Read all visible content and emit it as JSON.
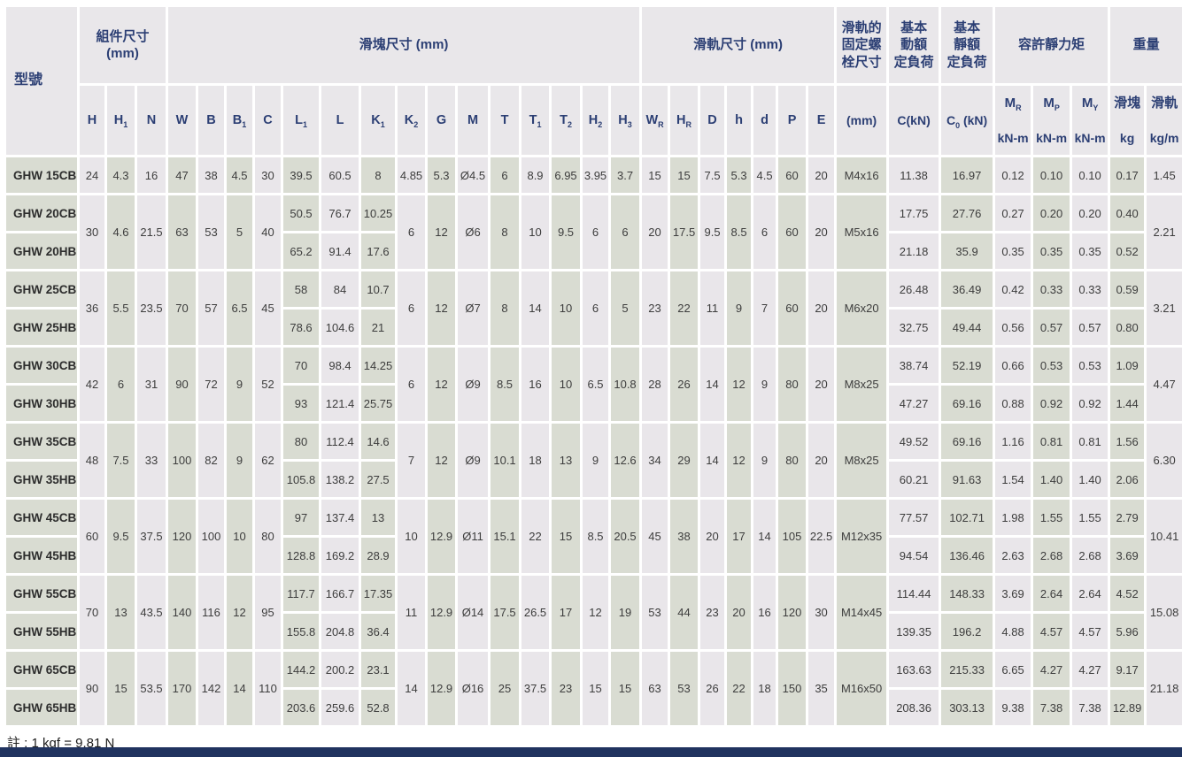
{
  "note": "註 : 1 kgf = 9.81 N",
  "colors": {
    "header_text": "#2c3f74",
    "stripe_light": "#e9e6ea",
    "stripe_sage": "#d9dcd2",
    "bottom_bar": "#20335f"
  },
  "header": {
    "model": "型號",
    "groups": [
      {
        "label": "組件尺寸\n(mm)",
        "span": 3
      },
      {
        "label": "滑塊尺寸 (mm)",
        "span": 15
      },
      {
        "label": "滑軌尺寸 (mm)",
        "span": 7
      },
      {
        "label": "滑軌的\n固定螺\n栓尺寸",
        "span": 1
      },
      {
        "label": "基本\n動額\n定負荷",
        "span": 1
      },
      {
        "label": "基本\n靜額\n定負荷",
        "span": 1
      },
      {
        "label": "容許靜力矩",
        "span": 3
      },
      {
        "label": "重量",
        "span": 2
      }
    ],
    "dim_cols": [
      "H",
      "H_1",
      "N",
      "W",
      "B",
      "B_1",
      "C",
      "L_1",
      "L",
      "K_1",
      "K_2",
      "G",
      "M",
      "T",
      "T_1",
      "T_2",
      "H_2",
      "H_3",
      "W_R",
      "H_R",
      "D",
      "h",
      "d",
      "P",
      "E"
    ],
    "unit_cols": [
      "(mm)",
      "C(kN)",
      "C_0 (kN)"
    ],
    "stacked_cols": [
      {
        "top": "M_R",
        "bottom": "kN-m"
      },
      {
        "top": "M_P",
        "bottom": "kN-m"
      },
      {
        "top": "M_Y",
        "bottom": "kN-m"
      },
      {
        "top": "滑塊",
        "bottom": "kg"
      },
      {
        "top": "滑軌",
        "bottom": "kg/m"
      }
    ]
  },
  "row_groups": [
    {
      "shared1": [
        "24",
        "4.3",
        "16",
        "47",
        "38",
        "4.5",
        "30"
      ],
      "shared2": [
        "4.85",
        "5.3",
        "Ø4.5",
        "6",
        "8.9",
        "6.95",
        "3.95",
        "3.7",
        "15",
        "15",
        "7.5",
        "5.3",
        "4.5",
        "60",
        "20"
      ],
      "bolt": "M4x16",
      "rail_kg": "1.45",
      "rows": [
        {
          "model": "GHW 15CB",
          "cells1": [
            "39.5",
            "60.5",
            "8"
          ],
          "cells2": [
            "11.38",
            "16.97",
            "0.12",
            "0.10",
            "0.10",
            "0.17"
          ]
        }
      ]
    },
    {
      "shared1": [
        "30",
        "4.6",
        "21.5",
        "63",
        "53",
        "5",
        "40"
      ],
      "shared2": [
        "6",
        "12",
        "Ø6",
        "8",
        "10",
        "9.5",
        "6",
        "6",
        "20",
        "17.5",
        "9.5",
        "8.5",
        "6",
        "60",
        "20"
      ],
      "bolt": "M5x16",
      "rail_kg": "2.21",
      "rows": [
        {
          "model": "GHW 20CB",
          "cells1": [
            "50.5",
            "76.7",
            "10.25"
          ],
          "cells2": [
            "17.75",
            "27.76",
            "0.27",
            "0.20",
            "0.20",
            "0.40"
          ]
        },
        {
          "model": "GHW 20HB",
          "cells1": [
            "65.2",
            "91.4",
            "17.6"
          ],
          "cells2": [
            "21.18",
            "35.9",
            "0.35",
            "0.35",
            "0.35",
            "0.52"
          ]
        }
      ]
    },
    {
      "shared1": [
        "36",
        "5.5",
        "23.5",
        "70",
        "57",
        "6.5",
        "45"
      ],
      "shared2": [
        "6",
        "12",
        "Ø7",
        "8",
        "14",
        "10",
        "6",
        "5",
        "23",
        "22",
        "11",
        "9",
        "7",
        "60",
        "20"
      ],
      "bolt": "M6x20",
      "rail_kg": "3.21",
      "rows": [
        {
          "model": "GHW 25CB",
          "cells1": [
            "58",
            "84",
            "10.7"
          ],
          "cells2": [
            "26.48",
            "36.49",
            "0.42",
            "0.33",
            "0.33",
            "0.59"
          ]
        },
        {
          "model": "GHW 25HB",
          "cells1": [
            "78.6",
            "104.6",
            "21"
          ],
          "cells2": [
            "32.75",
            "49.44",
            "0.56",
            "0.57",
            "0.57",
            "0.80"
          ]
        }
      ]
    },
    {
      "shared1": [
        "42",
        "6",
        "31",
        "90",
        "72",
        "9",
        "52"
      ],
      "shared2": [
        "6",
        "12",
        "Ø9",
        "8.5",
        "16",
        "10",
        "6.5",
        "10.8",
        "28",
        "26",
        "14",
        "12",
        "9",
        "80",
        "20"
      ],
      "bolt": "M8x25",
      "rail_kg": "4.47",
      "rows": [
        {
          "model": "GHW 30CB",
          "cells1": [
            "70",
            "98.4",
            "14.25"
          ],
          "cells2": [
            "38.74",
            "52.19",
            "0.66",
            "0.53",
            "0.53",
            "1.09"
          ]
        },
        {
          "model": "GHW 30HB",
          "cells1": [
            "93",
            "121.4",
            "25.75"
          ],
          "cells2": [
            "47.27",
            "69.16",
            "0.88",
            "0.92",
            "0.92",
            "1.44"
          ]
        }
      ]
    },
    {
      "shared1": [
        "48",
        "7.5",
        "33",
        "100",
        "82",
        "9",
        "62"
      ],
      "shared2": [
        "7",
        "12",
        "Ø9",
        "10.1",
        "18",
        "13",
        "9",
        "12.6",
        "34",
        "29",
        "14",
        "12",
        "9",
        "80",
        "20"
      ],
      "bolt": "M8x25",
      "rail_kg": "6.30",
      "rows": [
        {
          "model": "GHW 35CB",
          "cells1": [
            "80",
            "112.4",
            "14.6"
          ],
          "cells2": [
            "49.52",
            "69.16",
            "1.16",
            "0.81",
            "0.81",
            "1.56"
          ]
        },
        {
          "model": "GHW 35HB",
          "cells1": [
            "105.8",
            "138.2",
            "27.5"
          ],
          "cells2": [
            "60.21",
            "91.63",
            "1.54",
            "1.40",
            "1.40",
            "2.06"
          ]
        }
      ]
    },
    {
      "shared1": [
        "60",
        "9.5",
        "37.5",
        "120",
        "100",
        "10",
        "80"
      ],
      "shared2": [
        "10",
        "12.9",
        "Ø11",
        "15.1",
        "22",
        "15",
        "8.5",
        "20.5",
        "45",
        "38",
        "20",
        "17",
        "14",
        "105",
        "22.5"
      ],
      "bolt": "M12x35",
      "rail_kg": "10.41",
      "rows": [
        {
          "model": "GHW 45CB",
          "cells1": [
            "97",
            "137.4",
            "13"
          ],
          "cells2": [
            "77.57",
            "102.71",
            "1.98",
            "1.55",
            "1.55",
            "2.79"
          ]
        },
        {
          "model": "GHW 45HB",
          "cells1": [
            "128.8",
            "169.2",
            "28.9"
          ],
          "cells2": [
            "94.54",
            "136.46",
            "2.63",
            "2.68",
            "2.68",
            "3.69"
          ]
        }
      ]
    },
    {
      "shared1": [
        "70",
        "13",
        "43.5",
        "140",
        "116",
        "12",
        "95"
      ],
      "shared2": [
        "11",
        "12.9",
        "Ø14",
        "17.5",
        "26.5",
        "17",
        "12",
        "19",
        "53",
        "44",
        "23",
        "20",
        "16",
        "120",
        "30"
      ],
      "bolt": "M14x45",
      "rail_kg": "15.08",
      "rows": [
        {
          "model": "GHW 55CB",
          "cells1": [
            "117.7",
            "166.7",
            "17.35"
          ],
          "cells2": [
            "114.44",
            "148.33",
            "3.69",
            "2.64",
            "2.64",
            "4.52"
          ]
        },
        {
          "model": "GHW 55HB",
          "cells1": [
            "155.8",
            "204.8",
            "36.4"
          ],
          "cells2": [
            "139.35",
            "196.2",
            "4.88",
            "4.57",
            "4.57",
            "5.96"
          ]
        }
      ]
    },
    {
      "shared1": [
        "90",
        "15",
        "53.5",
        "170",
        "142",
        "14",
        "110"
      ],
      "shared2": [
        "14",
        "12.9",
        "Ø16",
        "25",
        "37.5",
        "23",
        "15",
        "15",
        "63",
        "53",
        "26",
        "22",
        "18",
        "150",
        "35"
      ],
      "bolt": "M16x50",
      "rail_kg": "21.18",
      "rows": [
        {
          "model": "GHW 65CB",
          "cells1": [
            "144.2",
            "200.2",
            "23.1"
          ],
          "cells2": [
            "163.63",
            "215.33",
            "6.65",
            "4.27",
            "4.27",
            "9.17"
          ]
        },
        {
          "model": "GHW 65HB",
          "cells1": [
            "203.6",
            "259.6",
            "52.8"
          ],
          "cells2": [
            "208.36",
            "303.13",
            "9.38",
            "7.38",
            "7.38",
            "12.89"
          ]
        }
      ]
    }
  ]
}
